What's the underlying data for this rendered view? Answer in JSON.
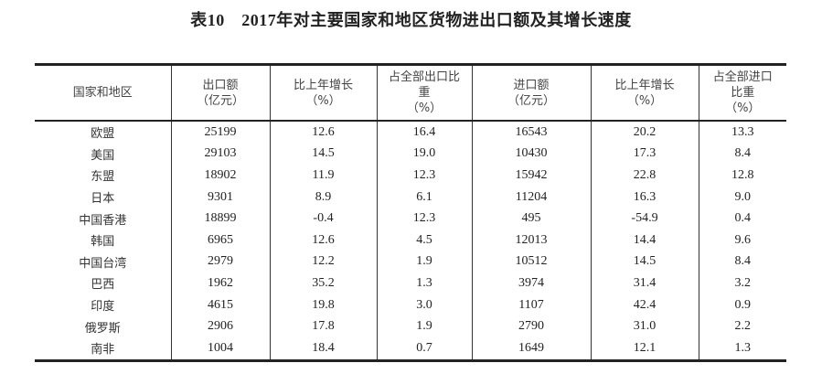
{
  "title": "表10　2017年对主要国家和地区货物进出口额及其增长速度",
  "headers": [
    [
      "国家和地区"
    ],
    [
      "出口额",
      "（亿元）"
    ],
    [
      "比上年增长",
      "（%）"
    ],
    [
      "占全部出口比",
      "重",
      "（%）"
    ],
    [
      "进口额",
      "（亿元）"
    ],
    [
      "比上年增长",
      "（%）"
    ],
    [
      "占全部进口",
      "比重",
      "（%）"
    ]
  ],
  "rows": [
    [
      "欧盟",
      "25199",
      "12.6",
      "16.4",
      "16543",
      "20.2",
      "13.3"
    ],
    [
      "美国",
      "29103",
      "14.5",
      "19.0",
      "10430",
      "17.3",
      "8.4"
    ],
    [
      "东盟",
      "18902",
      "11.9",
      "12.3",
      "15942",
      "22.8",
      "12.8"
    ],
    [
      "日本",
      "9301",
      "8.9",
      "6.1",
      "11204",
      "16.3",
      "9.0"
    ],
    [
      "中国香港",
      "18899",
      "-0.4",
      "12.3",
      "495",
      "-54.9",
      "0.4"
    ],
    [
      "韩国",
      "6965",
      "12.6",
      "4.5",
      "12013",
      "14.4",
      "9.6"
    ],
    [
      "中国台湾",
      "2979",
      "12.2",
      "1.9",
      "10512",
      "14.5",
      "8.4"
    ],
    [
      "巴西",
      "1962",
      "35.2",
      "1.3",
      "3974",
      "31.4",
      "3.2"
    ],
    [
      "印度",
      "4615",
      "19.8",
      "3.0",
      "1107",
      "42.4",
      "0.9"
    ],
    [
      "俄罗斯",
      "2906",
      "17.8",
      "1.9",
      "2790",
      "31.0",
      "2.2"
    ],
    [
      "南非",
      "1004",
      "18.4",
      "0.7",
      "1649",
      "12.1",
      "1.3"
    ]
  ]
}
